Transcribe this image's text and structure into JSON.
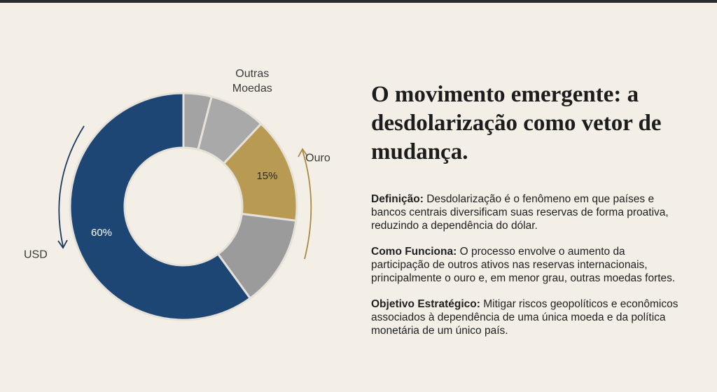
{
  "chart_data": {
    "type": "donut",
    "categories": [
      null,
      "Outras Moedas",
      "Ouro",
      null,
      "USD"
    ],
    "values": [
      4,
      8,
      15,
      13,
      60
    ],
    "value_labels": [
      null,
      null,
      "15%",
      null,
      "60%"
    ],
    "colors": [
      "#a3a3a3",
      "#a9a9a9",
      "#b89a52",
      "#9b9b9b",
      "#1d4675"
    ]
  },
  "text": {
    "title": "O movimento emergente: a desdolarização como vetor de mudança.",
    "items": [
      {
        "term": "Definição:",
        "body": "Desdolarização é o fenômeno em que países e bancos centrais diversificam suas reservas de forma proativa, reduzindo a dependência do dólar."
      },
      {
        "term": "Como Funciona:",
        "body": "O processo envolve o aumento da participação de outros ativos nas reservas internacionais, principalmente o ouro e, em menor grau, outras moedas fortes."
      },
      {
        "term": "Objetivo Estratégico:",
        "body": "Mitigar riscos geopolíticos e econômicos associados à dependência de uma única moeda e da política monetária de um único país."
      }
    ]
  }
}
